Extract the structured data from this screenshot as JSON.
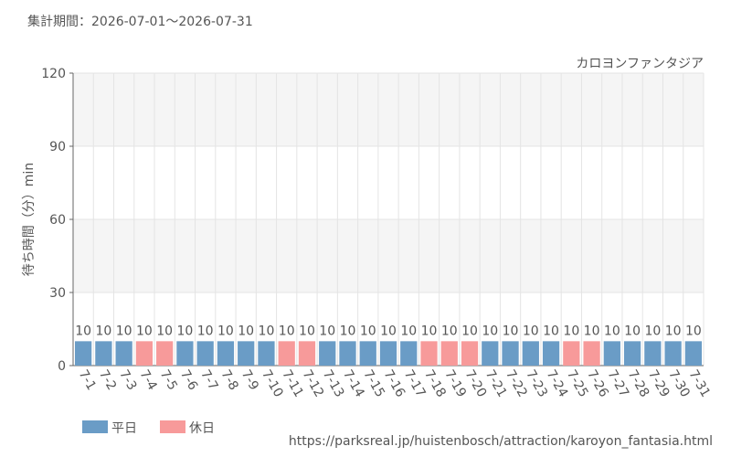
{
  "chart_data": {
    "type": "bar",
    "title": "集計期間：2026-07-01〜2026-07-31",
    "subtitle": "カロヨンファンタジア",
    "y_label": "待ち時間（分）min",
    "source": "https://parksreal.jp/huistenbosch/attraction/karoyon_fantasia.html",
    "categories": [
      "7-1",
      "7-2",
      "7-3",
      "7-4",
      "7-5",
      "7-6",
      "7-7",
      "7-8",
      "7-9",
      "7-10",
      "7-11",
      "7-12",
      "7-13",
      "7-14",
      "7-15",
      "7-16",
      "7-17",
      "7-18",
      "7-19",
      "7-20",
      "7-21",
      "7-22",
      "7-23",
      "7-24",
      "7-25",
      "7-26",
      "7-27",
      "7-28",
      "7-29",
      "7-30",
      "7-31"
    ],
    "series": [
      {
        "name": "平日",
        "color": "#6a9cc6",
        "label_color": "#4a7fae",
        "values": [
          10,
          10,
          10,
          null,
          null,
          10,
          10,
          10,
          10,
          10,
          null,
          null,
          10,
          10,
          10,
          10,
          10,
          null,
          null,
          null,
          10,
          10,
          10,
          10,
          null,
          null,
          10,
          10,
          10,
          10,
          10
        ]
      },
      {
        "name": "休日",
        "color": "#f79a9a",
        "label_color": "#f08080",
        "values": [
          null,
          null,
          null,
          10,
          10,
          null,
          null,
          null,
          null,
          null,
          10,
          10,
          null,
          null,
          null,
          null,
          null,
          10,
          10,
          10,
          null,
          null,
          null,
          null,
          10,
          10,
          null,
          null,
          null,
          null,
          null
        ]
      }
    ],
    "ylim": [
      0,
      120
    ],
    "yticks": [
      0,
      30,
      60,
      90,
      120
    ],
    "grid": true
  }
}
